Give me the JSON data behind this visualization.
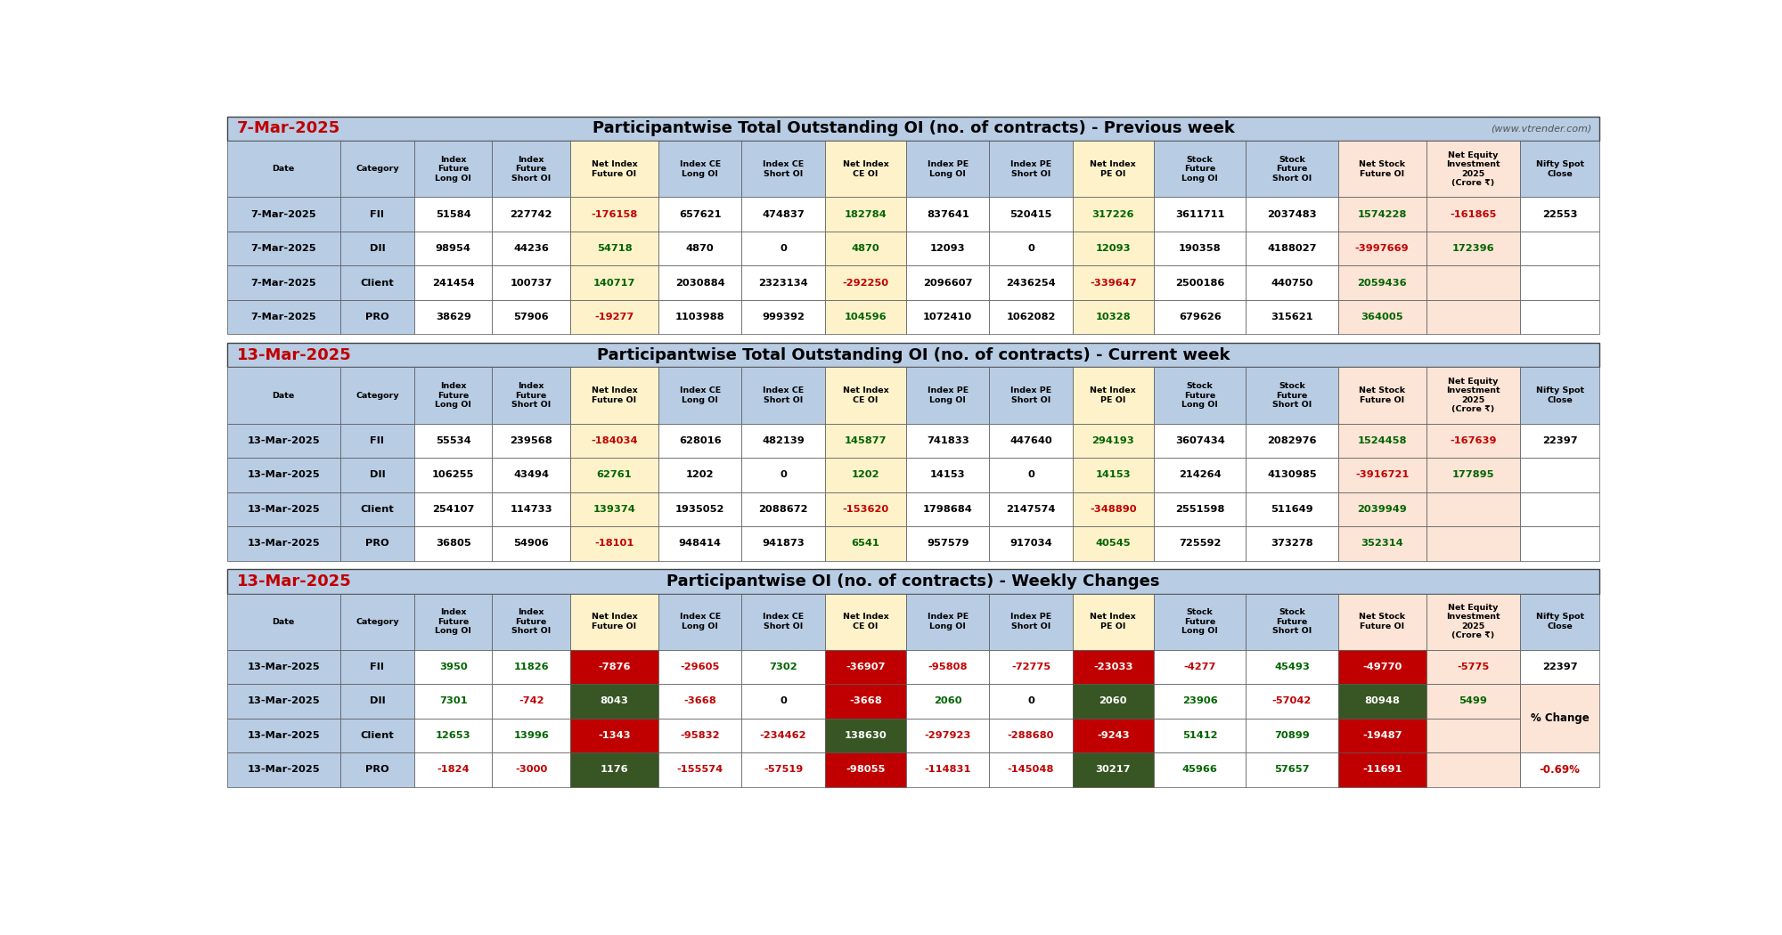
{
  "section1_date": "7-Mar-2025",
  "section1_main": "Participantwise Total Outstanding OI (no. of contracts) - Previous week",
  "section1_web": "(www.vtrender.com)",
  "section2_date": "13-Mar-2025",
  "section2_main": "Participantwise Total Outstanding OI (no. of contracts) - Current week",
  "section3_date": "13-Mar-2025",
  "section3_main": "Participantwise OI (no. of contracts) - Weekly Changes",
  "section1_rows": [
    [
      "7-Mar-2025",
      "FII",
      "51584",
      "227742",
      "-176158",
      "657621",
      "474837",
      "182784",
      "837641",
      "520415",
      "317226",
      "3611711",
      "2037483",
      "1574228",
      "-161865",
      "22553"
    ],
    [
      "7-Mar-2025",
      "DII",
      "98954",
      "44236",
      "54718",
      "4870",
      "0",
      "4870",
      "12093",
      "0",
      "12093",
      "190358",
      "4188027",
      "-3997669",
      "172396",
      ""
    ],
    [
      "7-Mar-2025",
      "Client",
      "241454",
      "100737",
      "140717",
      "2030884",
      "2323134",
      "-292250",
      "2096607",
      "2436254",
      "-339647",
      "2500186",
      "440750",
      "2059436",
      "",
      ""
    ],
    [
      "7-Mar-2025",
      "PRO",
      "38629",
      "57906",
      "-19277",
      "1103988",
      "999392",
      "104596",
      "1072410",
      "1062082",
      "10328",
      "679626",
      "315621",
      "364005",
      "",
      ""
    ]
  ],
  "section2_rows": [
    [
      "13-Mar-2025",
      "FII",
      "55534",
      "239568",
      "-184034",
      "628016",
      "482139",
      "145877",
      "741833",
      "447640",
      "294193",
      "3607434",
      "2082976",
      "1524458",
      "-167639",
      "22397"
    ],
    [
      "13-Mar-2025",
      "DII",
      "106255",
      "43494",
      "62761",
      "1202",
      "0",
      "1202",
      "14153",
      "0",
      "14153",
      "214264",
      "4130985",
      "-3916721",
      "177895",
      ""
    ],
    [
      "13-Mar-2025",
      "Client",
      "254107",
      "114733",
      "139374",
      "1935052",
      "2088672",
      "-153620",
      "1798684",
      "2147574",
      "-348890",
      "2551598",
      "511649",
      "2039949",
      "",
      ""
    ],
    [
      "13-Mar-2025",
      "PRO",
      "36805",
      "54906",
      "-18101",
      "948414",
      "941873",
      "6541",
      "957579",
      "917034",
      "40545",
      "725592",
      "373278",
      "352314",
      "",
      ""
    ]
  ],
  "section3_rows": [
    [
      "13-Mar-2025",
      "FII",
      "3950",
      "11826",
      "-7876",
      "-29605",
      "7302",
      "-36907",
      "-95808",
      "-72775",
      "-23033",
      "-4277",
      "45493",
      "-49770",
      "-5775",
      "22397"
    ],
    [
      "13-Mar-2025",
      "DII",
      "7301",
      "-742",
      "8043",
      "-3668",
      "0",
      "-3668",
      "2060",
      "0",
      "2060",
      "23906",
      "-57042",
      "80948",
      "5499",
      ""
    ],
    [
      "13-Mar-2025",
      "Client",
      "12653",
      "13996",
      "-1343",
      "-95832",
      "-234462",
      "138630",
      "-297923",
      "-288680",
      "-9243",
      "51412",
      "70899",
      "-19487",
      "",
      ""
    ],
    [
      "13-Mar-2025",
      "PRO",
      "-1824",
      "-3000",
      "1176",
      "-155574",
      "-57519",
      "-98055",
      "-114831",
      "-145048",
      "30217",
      "45966",
      "57657",
      "-11691",
      "",
      ""
    ]
  ],
  "pct_label": "% Change",
  "pct_value": "-0.69%",
  "bg_blue": "#b8cce4",
  "bg_yellow": "#fef2cb",
  "bg_orange": "#fce4d6",
  "bg_white": "#ffffff",
  "bg_red": "#c00000",
  "bg_green": "#375623",
  "col_green_text": "#006400",
  "col_red_text": "#c00000",
  "col_black": "#000000",
  "col_white": "#ffffff",
  "col_gray": "#555555"
}
